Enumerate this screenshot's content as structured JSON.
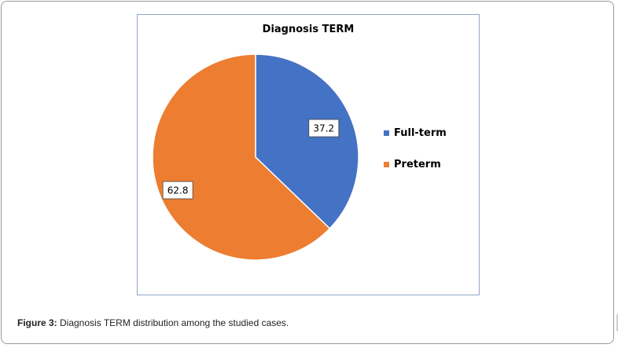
{
  "colors": {
    "full_term": "#4472C4",
    "preterm": "#ED7D31"
  },
  "chart_data": {
    "type": "pie",
    "title": "Diagnosis TERM",
    "categories": [
      "Full-term",
      "Preterm"
    ],
    "values": [
      37.2,
      62.8
    ],
    "data_labels": [
      "37.2",
      "62.8"
    ],
    "legend_placement": "right",
    "colors": [
      "#4472C4",
      "#ED7D31"
    ]
  },
  "caption": {
    "label": "Figure 3:",
    "text": " Diagnosis TERM distribution among the studied cases."
  }
}
